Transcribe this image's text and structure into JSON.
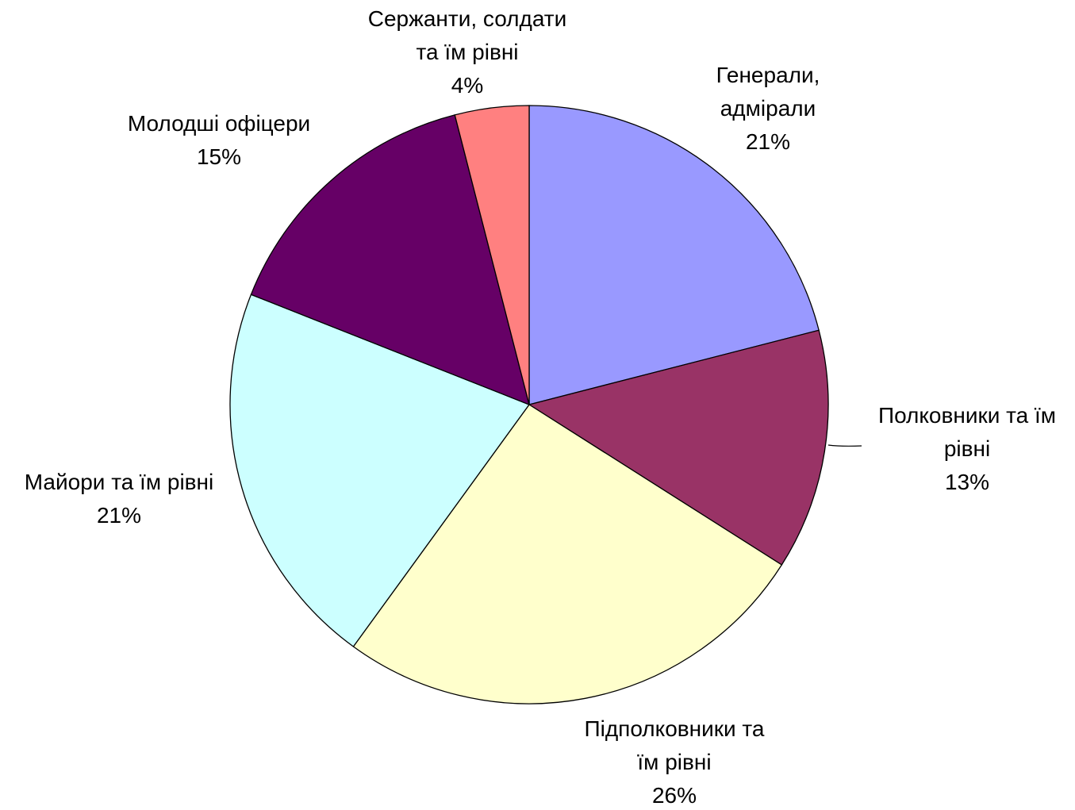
{
  "chart_data": {
    "type": "pie",
    "title": "",
    "start_angle_deg": 0,
    "direction": "clockwise",
    "slices": [
      {
        "label_lines": [
          "Генерали,",
          "адмірали"
        ],
        "percent_label": "21%",
        "value": 21,
        "color": "#9999ff"
      },
      {
        "label_lines": [
          "Полковники та їм",
          "рівні"
        ],
        "percent_label": "13%",
        "value": 13,
        "color": "#993366"
      },
      {
        "label_lines": [
          "Підполковники та",
          "їм рівні"
        ],
        "percent_label": "26%",
        "value": 26,
        "color": "#ffffcc"
      },
      {
        "label_lines": [
          "Майори та їм рівні"
        ],
        "percent_label": "21%",
        "value": 21,
        "color": "#ccffff"
      },
      {
        "label_lines": [
          "Молодші офіцери"
        ],
        "percent_label": "15%",
        "value": 15,
        "color": "#660066"
      },
      {
        "label_lines": [
          "Сержанти, солдати",
          "та їм рівні"
        ],
        "percent_label": "4%",
        "value": 4,
        "color": "#ff8080"
      }
    ]
  }
}
